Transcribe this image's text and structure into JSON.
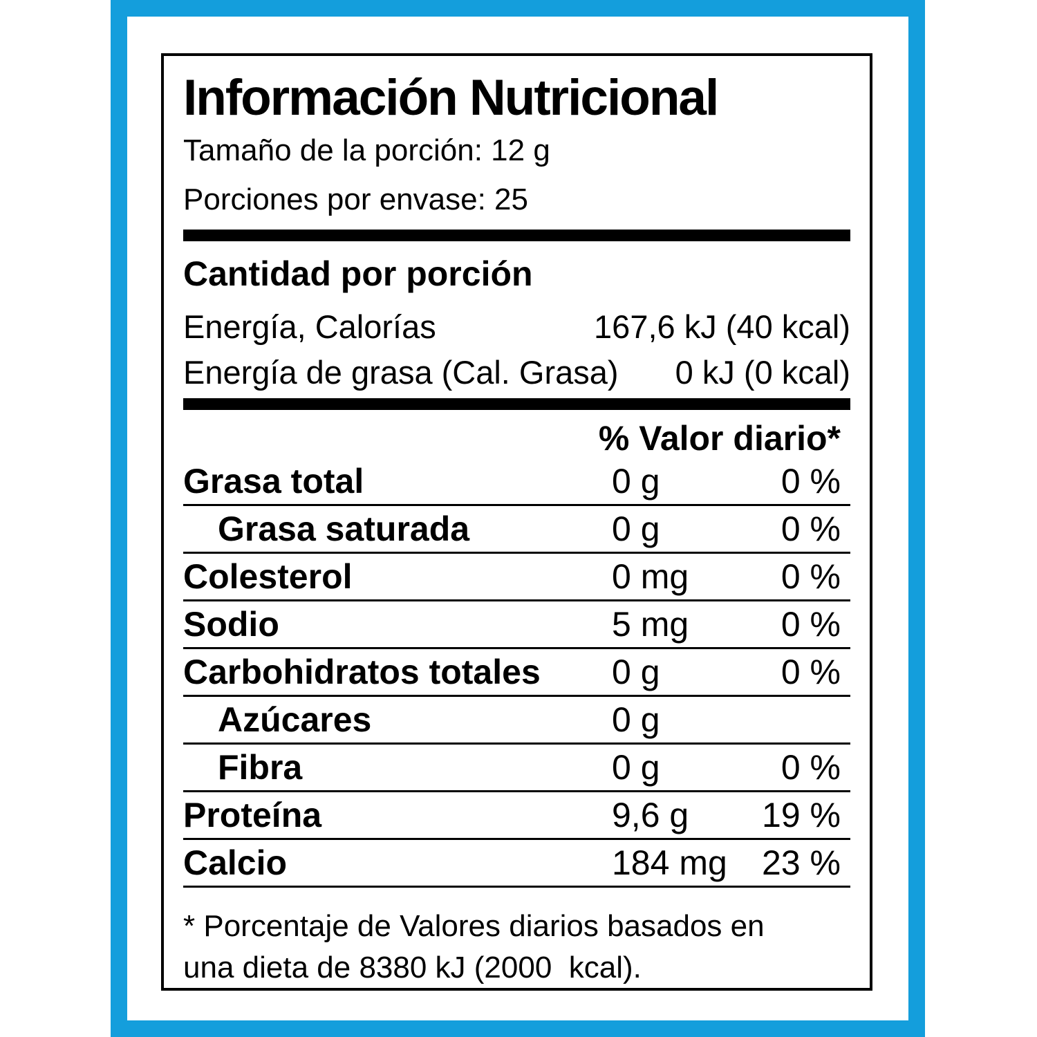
{
  "colors": {
    "accent_blue": "#149EDC",
    "text_black": "#000000"
  },
  "label": {
    "title": "Información Nutricional",
    "serving_size": "Tamaño de la porción: 12 g",
    "servings_per_container": "Porciones por envase: 25",
    "amount_per_serving_heading": "Cantidad por porción",
    "energy_rows": [
      {
        "name": "Energía, Calorías",
        "value": "167,6 kJ (40 kcal)"
      },
      {
        "name": "Energía de grasa (Cal. Grasa)",
        "value": "0 kJ (0 kcal)"
      }
    ],
    "daily_value_header": "% Valor diario*",
    "nutrient_rows": [
      {
        "name": "Grasa total",
        "amount": "0 g",
        "dv": "0 %",
        "indent": false
      },
      {
        "name": "Grasa saturada",
        "amount": "0 g",
        "dv": "0 %",
        "indent": true
      },
      {
        "name": "Colesterol",
        "amount": "0 mg",
        "dv": "0 %",
        "indent": false
      },
      {
        "name": "Sodio",
        "amount": "5 mg",
        "dv": "0 %",
        "indent": false
      },
      {
        "name": "Carbohidratos totales",
        "amount": "0 g",
        "dv": "0 %",
        "indent": false
      },
      {
        "name": "Azúcares",
        "amount": "0 g",
        "dv": "",
        "indent": true
      },
      {
        "name": "Fibra",
        "amount": "0 g",
        "dv": "0 %",
        "indent": true
      },
      {
        "name": "Proteína",
        "amount": "9,6 g",
        "dv": "19 %",
        "indent": false
      },
      {
        "name": "Calcio",
        "amount": "184 mg",
        "dv": "23 %",
        "indent": false
      }
    ],
    "footnote": {
      "line1": "* Porcentaje de Valores diarios basados en",
      "line2": "una dieta de 8380 kJ (2000  kcal)."
    }
  }
}
